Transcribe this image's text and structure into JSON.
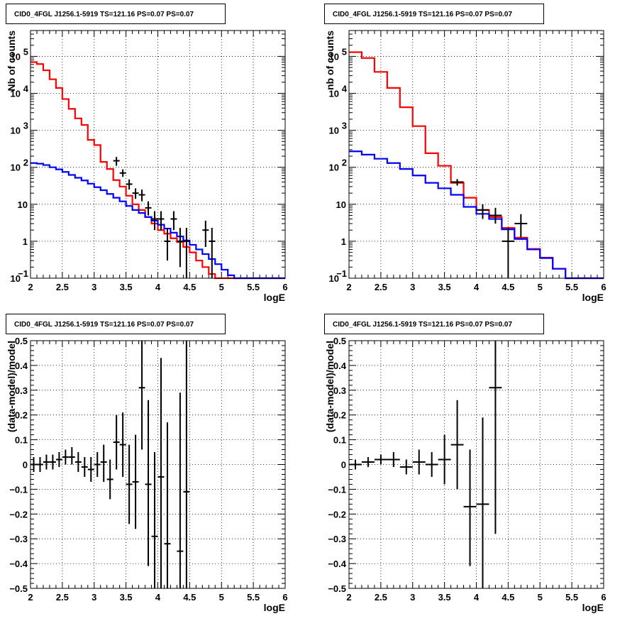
{
  "chart_data": [
    {
      "id": "top-left",
      "type": "line",
      "log_y": true,
      "title": "CID0_4FGL J1256.1-5919 TS=121.16 PS=0.07 PS=0.07",
      "xlabel": "logE",
      "ylabel": "Nb of counts",
      "xlim": [
        2,
        6
      ],
      "ylim": [
        0.1,
        500000
      ],
      "xticks": [
        "2",
        "2.5",
        "3",
        "3.5",
        "4",
        "4.5",
        "5",
        "5.5",
        "6"
      ],
      "yticks": [
        {
          "value": 0.1,
          "label": "10",
          "sup": "−1"
        },
        {
          "value": 1,
          "label": "1",
          "sup": ""
        },
        {
          "value": 10,
          "label": "10",
          "sup": ""
        },
        {
          "value": 100,
          "label": "10",
          "sup": "2"
        },
        {
          "value": 1000,
          "label": "10",
          "sup": "3"
        },
        {
          "value": 10000,
          "label": "10",
          "sup": "4"
        },
        {
          "value": 100000,
          "label": "10",
          "sup": "5"
        }
      ],
      "grid": true,
      "bin_edges": [
        2.0,
        2.1,
        2.2,
        2.3,
        2.4,
        2.5,
        2.6,
        2.7,
        2.8,
        2.9,
        3.0,
        3.1,
        3.2,
        3.3,
        3.4,
        3.5,
        3.6,
        3.7,
        3.8,
        3.9,
        4.0,
        4.1,
        4.2,
        4.3,
        4.4,
        4.5,
        4.6,
        4.7,
        4.8,
        4.9,
        5.0,
        5.1,
        5.2,
        5.3,
        5.4,
        5.5,
        5.6,
        5.7,
        5.8,
        5.9,
        6.0
      ],
      "series": [
        {
          "color": "#ff0000",
          "kind": "step",
          "values": [
            70000,
            62000,
            42000,
            24000,
            14000,
            7000,
            3800,
            2100,
            1400,
            550,
            400,
            140,
            90,
            45,
            30,
            17,
            10,
            7,
            4.5,
            3,
            2,
            1.6,
            1.2,
            0.95,
            0.7,
            0.5,
            0.3,
            0.2,
            0.13,
            0.1,
            0.1,
            0.1,
            0.1,
            0.1,
            0.1,
            0.1,
            0.1,
            0.1,
            0.1,
            0.1
          ]
        },
        {
          "color": "#0000ff",
          "kind": "step",
          "values": [
            130,
            125,
            115,
            100,
            88,
            75,
            62,
            52,
            44,
            36,
            29,
            24,
            19,
            15,
            12,
            9,
            7,
            5.8,
            4.5,
            3.6,
            2.8,
            2.2,
            1.7,
            1.35,
            1.05,
            0.8,
            0.6,
            0.45,
            0.33,
            0.24,
            0.17,
            0.12,
            0.1,
            0.1,
            0.1,
            0.1,
            0.1,
            0.1,
            0.1,
            0.1
          ]
        },
        {
          "color": "#000000",
          "kind": "errorbar",
          "points": [
            {
              "x": 3.35,
              "y": 150,
              "lo": 110,
              "hi": 190,
              "xerr": 0.05
            },
            {
              "x": 3.45,
              "y": 70,
              "lo": 55,
              "hi": 88,
              "xerr": 0.05
            },
            {
              "x": 3.55,
              "y": 35,
              "lo": 25,
              "hi": 47,
              "xerr": 0.05
            },
            {
              "x": 3.65,
              "y": 20,
              "lo": 14,
              "hi": 27,
              "xerr": 0.05
            },
            {
              "x": 3.75,
              "y": 18,
              "lo": 12,
              "hi": 25,
              "xerr": 0.05
            },
            {
              "x": 3.85,
              "y": 8,
              "lo": 5,
              "hi": 12,
              "xerr": 0.05
            },
            {
              "x": 3.95,
              "y": 4,
              "lo": 2,
              "hi": 6.5,
              "xerr": 0.05
            },
            {
              "x": 4.05,
              "y": 4,
              "lo": 2,
              "hi": 6.5,
              "xerr": 0.05
            },
            {
              "x": 4.15,
              "y": 1,
              "lo": 0.3,
              "hi": 2.3,
              "xerr": 0.05
            },
            {
              "x": 4.25,
              "y": 4,
              "lo": 2,
              "hi": 6.5,
              "xerr": 0.05
            },
            {
              "x": 4.35,
              "y": 1,
              "lo": 0.2,
              "hi": 2.3,
              "xerr": 0.05
            },
            {
              "x": 4.45,
              "y": 1,
              "lo": 0.1,
              "hi": 2.3,
              "xerr": 0.05
            },
            {
              "x": 4.75,
              "y": 2,
              "lo": 0.7,
              "hi": 3.6,
              "xerr": 0.05
            },
            {
              "x": 4.85,
              "y": 1,
              "lo": 0.1,
              "hi": 2.3,
              "xerr": 0.05
            }
          ]
        }
      ]
    },
    {
      "id": "top-right",
      "type": "line",
      "log_y": true,
      "title": "CID0_4FGL J1256.1-5919 TS=121.16 PS=0.07 PS=0.07",
      "xlabel": "logE",
      "ylabel": "nb of counts",
      "xlim": [
        2,
        6
      ],
      "ylim": [
        0.1,
        500000
      ],
      "xticks": [
        "2",
        "2.5",
        "3",
        "3.5",
        "4",
        "4.5",
        "5",
        "5.5",
        "6"
      ],
      "yticks": [
        {
          "value": 0.1,
          "label": "10",
          "sup": "−1"
        },
        {
          "value": 1,
          "label": "1",
          "sup": ""
        },
        {
          "value": 10,
          "label": "10",
          "sup": ""
        },
        {
          "value": 100,
          "label": "10",
          "sup": "2"
        },
        {
          "value": 1000,
          "label": "10",
          "sup": "3"
        },
        {
          "value": 10000,
          "label": "10",
          "sup": "4"
        },
        {
          "value": 100000,
          "label": "10",
          "sup": "5"
        }
      ],
      "grid": true,
      "bin_edges": [
        2.0,
        2.2,
        2.4,
        2.6,
        2.8,
        3.0,
        3.2,
        3.4,
        3.6,
        3.8,
        4.0,
        4.2,
        4.4,
        4.6,
        4.8,
        5.0,
        5.2,
        5.4,
        5.6,
        5.8,
        6.0
      ],
      "series": [
        {
          "color": "#ff0000",
          "kind": "step",
          "values": [
            130000,
            90000,
            38000,
            14000,
            4200,
            1300,
            240,
            110,
            38,
            15,
            7,
            4.5,
            2.3,
            1.25,
            0.62,
            0.36,
            0.18,
            0.1,
            0.1,
            0.1
          ]
        },
        {
          "color": "#0000ff",
          "kind": "step",
          "values": [
            270,
            220,
            170,
            130,
            90,
            60,
            38,
            27,
            18,
            8.5,
            5.5,
            4,
            2.1,
            1.15,
            0.6,
            0.35,
            0.18,
            0.1,
            0.1,
            0.1
          ]
        },
        {
          "color": "#000000",
          "kind": "errorbar",
          "points": [
            {
              "x": 3.7,
              "y": 40,
              "lo": 32,
              "hi": 48,
              "xerr": 0.1
            },
            {
              "x": 4.1,
              "y": 7,
              "lo": 4,
              "hi": 10,
              "xerr": 0.1
            },
            {
              "x": 4.3,
              "y": 5,
              "lo": 3,
              "hi": 8,
              "xerr": 0.1
            },
            {
              "x": 4.5,
              "y": 1,
              "lo": 0.1,
              "hi": 2.3,
              "xerr": 0.1
            },
            {
              "x": 4.7,
              "y": 3,
              "lo": 1.3,
              "hi": 5.4,
              "xerr": 0.1
            }
          ]
        }
      ]
    },
    {
      "id": "bottom-left",
      "type": "scatter",
      "log_y": false,
      "title": "CID0_4FGL J1256.1-5919 TS=121.16 PS=0.07 PS=0.07",
      "xlabel": "logE",
      "ylabel": "(data-model)/model",
      "xlim": [
        2,
        6
      ],
      "ylim": [
        -0.5,
        0.5
      ],
      "xticks": [
        "2",
        "2.5",
        "3",
        "3.5",
        "4",
        "4.5",
        "5",
        "5.5",
        "6"
      ],
      "yticks": [
        {
          "value": -0.5,
          "label": "−0.5",
          "sup": ""
        },
        {
          "value": -0.4,
          "label": "−0.4",
          "sup": ""
        },
        {
          "value": -0.3,
          "label": "−0.3",
          "sup": ""
        },
        {
          "value": -0.2,
          "label": "−0.2",
          "sup": ""
        },
        {
          "value": -0.1,
          "label": "−0.1",
          "sup": ""
        },
        {
          "value": 0,
          "label": "0",
          "sup": ""
        },
        {
          "value": 0.1,
          "label": "0.1",
          "sup": ""
        },
        {
          "value": 0.2,
          "label": "0.2",
          "sup": ""
        },
        {
          "value": 0.3,
          "label": "0.3",
          "sup": ""
        },
        {
          "value": 0.4,
          "label": "0.4",
          "sup": ""
        },
        {
          "value": 0.5,
          "label": "0.5",
          "sup": ""
        }
      ],
      "grid": true,
      "series": [
        {
          "color": "#000000",
          "kind": "errorbar",
          "points": [
            {
              "x": 2.05,
              "y": 0.0,
              "lo": -0.03,
              "hi": 0.03,
              "xerr": 0.05
            },
            {
              "x": 2.15,
              "y": 0.0,
              "lo": -0.03,
              "hi": 0.03,
              "xerr": 0.05
            },
            {
              "x": 2.25,
              "y": 0.01,
              "lo": -0.02,
              "hi": 0.04,
              "xerr": 0.05
            },
            {
              "x": 2.35,
              "y": 0.01,
              "lo": -0.02,
              "hi": 0.04,
              "xerr": 0.05
            },
            {
              "x": 2.45,
              "y": 0.02,
              "lo": -0.01,
              "hi": 0.05,
              "xerr": 0.05
            },
            {
              "x": 2.55,
              "y": 0.03,
              "lo": 0.0,
              "hi": 0.06,
              "xerr": 0.05
            },
            {
              "x": 2.65,
              "y": 0.03,
              "lo": 0.0,
              "hi": 0.07,
              "xerr": 0.05
            },
            {
              "x": 2.75,
              "y": 0.01,
              "lo": -0.03,
              "hi": 0.05,
              "xerr": 0.05
            },
            {
              "x": 2.85,
              "y": -0.01,
              "lo": -0.05,
              "hi": 0.03,
              "xerr": 0.05
            },
            {
              "x": 2.95,
              "y": -0.02,
              "lo": -0.07,
              "hi": 0.03,
              "xerr": 0.05
            },
            {
              "x": 3.05,
              "y": 0.0,
              "lo": -0.05,
              "hi": 0.05,
              "xerr": 0.05
            },
            {
              "x": 3.15,
              "y": 0.01,
              "lo": -0.07,
              "hi": 0.08,
              "xerr": 0.05
            },
            {
              "x": 3.25,
              "y": -0.06,
              "lo": -0.14,
              "hi": 0.02,
              "xerr": 0.05
            },
            {
              "x": 3.35,
              "y": 0.09,
              "lo": -0.02,
              "hi": 0.2,
              "xerr": 0.05
            },
            {
              "x": 3.45,
              "y": 0.08,
              "lo": -0.05,
              "hi": 0.21,
              "xerr": 0.05
            },
            {
              "x": 3.55,
              "y": -0.08,
              "lo": -0.24,
              "hi": 0.08,
              "xerr": 0.05
            },
            {
              "x": 3.65,
              "y": -0.07,
              "lo": -0.26,
              "hi": 0.12,
              "xerr": 0.05
            },
            {
              "x": 3.75,
              "y": 0.31,
              "lo": 0.06,
              "hi": 0.5,
              "xerr": 0.05
            },
            {
              "x": 3.85,
              "y": -0.08,
              "lo": -0.41,
              "hi": 0.26,
              "xerr": 0.05
            },
            {
              "x": 3.95,
              "y": -0.29,
              "lo": -0.5,
              "hi": 0.05,
              "xerr": 0.05
            },
            {
              "x": 4.05,
              "y": -0.05,
              "lo": -0.5,
              "hi": 0.43,
              "xerr": 0.05
            },
            {
              "x": 4.15,
              "y": -0.32,
              "lo": -0.5,
              "hi": 0.17,
              "xerr": 0.05
            },
            {
              "x": 4.35,
              "y": -0.35,
              "lo": -0.5,
              "hi": 0.29,
              "xerr": 0.05
            },
            {
              "x": 4.45,
              "y": -0.11,
              "lo": -0.5,
              "hi": 0.5,
              "xerr": 0.05
            }
          ]
        }
      ]
    },
    {
      "id": "bottom-right",
      "type": "scatter",
      "log_y": false,
      "title": "CID0_4FGL J1256.1-5919 TS=121.16 PS=0.07 PS=0.07",
      "xlabel": "logE",
      "ylabel": "(data-model)/model",
      "xlim": [
        2,
        6
      ],
      "ylim": [
        -0.5,
        0.5
      ],
      "xticks": [
        "2",
        "2.5",
        "3",
        "3.5",
        "4",
        "4.5",
        "5",
        "5.5",
        "6"
      ],
      "yticks": [
        {
          "value": -0.5,
          "label": "−0.5",
          "sup": ""
        },
        {
          "value": -0.4,
          "label": "−0.4",
          "sup": ""
        },
        {
          "value": -0.3,
          "label": "−0.3",
          "sup": ""
        },
        {
          "value": -0.2,
          "label": "−0.2",
          "sup": ""
        },
        {
          "value": -0.1,
          "label": "−0.1",
          "sup": ""
        },
        {
          "value": 0,
          "label": "0",
          "sup": ""
        },
        {
          "value": 0.1,
          "label": "0.1",
          "sup": ""
        },
        {
          "value": 0.2,
          "label": "0.2",
          "sup": ""
        },
        {
          "value": 0.3,
          "label": "0.3",
          "sup": ""
        },
        {
          "value": 0.4,
          "label": "0.4",
          "sup": ""
        },
        {
          "value": 0.5,
          "label": "0.5",
          "sup": ""
        }
      ],
      "grid": true,
      "series": [
        {
          "color": "#000000",
          "kind": "errorbar",
          "points": [
            {
              "x": 2.1,
              "y": 0.0,
              "lo": -0.02,
              "hi": 0.02,
              "xerr": 0.1
            },
            {
              "x": 2.3,
              "y": 0.01,
              "lo": -0.01,
              "hi": 0.03,
              "xerr": 0.1
            },
            {
              "x": 2.5,
              "y": 0.02,
              "lo": 0.0,
              "hi": 0.04,
              "xerr": 0.1
            },
            {
              "x": 2.7,
              "y": 0.02,
              "lo": -0.01,
              "hi": 0.05,
              "xerr": 0.1
            },
            {
              "x": 2.9,
              "y": -0.01,
              "lo": -0.04,
              "hi": 0.02,
              "xerr": 0.1
            },
            {
              "x": 3.1,
              "y": 0.01,
              "lo": -0.04,
              "hi": 0.06,
              "xerr": 0.1
            },
            {
              "x": 3.3,
              "y": 0.0,
              "lo": -0.05,
              "hi": 0.05,
              "xerr": 0.1
            },
            {
              "x": 3.5,
              "y": 0.02,
              "lo": -0.08,
              "hi": 0.12,
              "xerr": 0.1
            },
            {
              "x": 3.7,
              "y": 0.08,
              "lo": -0.1,
              "hi": 0.26,
              "xerr": 0.1
            },
            {
              "x": 3.9,
              "y": -0.17,
              "lo": -0.41,
              "hi": 0.06,
              "xerr": 0.1
            },
            {
              "x": 4.1,
              "y": -0.16,
              "lo": -0.5,
              "hi": 0.19,
              "xerr": 0.1
            },
            {
              "x": 4.3,
              "y": 0.31,
              "lo": -0.28,
              "hi": 0.5,
              "xerr": 0.1
            }
          ]
        }
      ]
    }
  ]
}
